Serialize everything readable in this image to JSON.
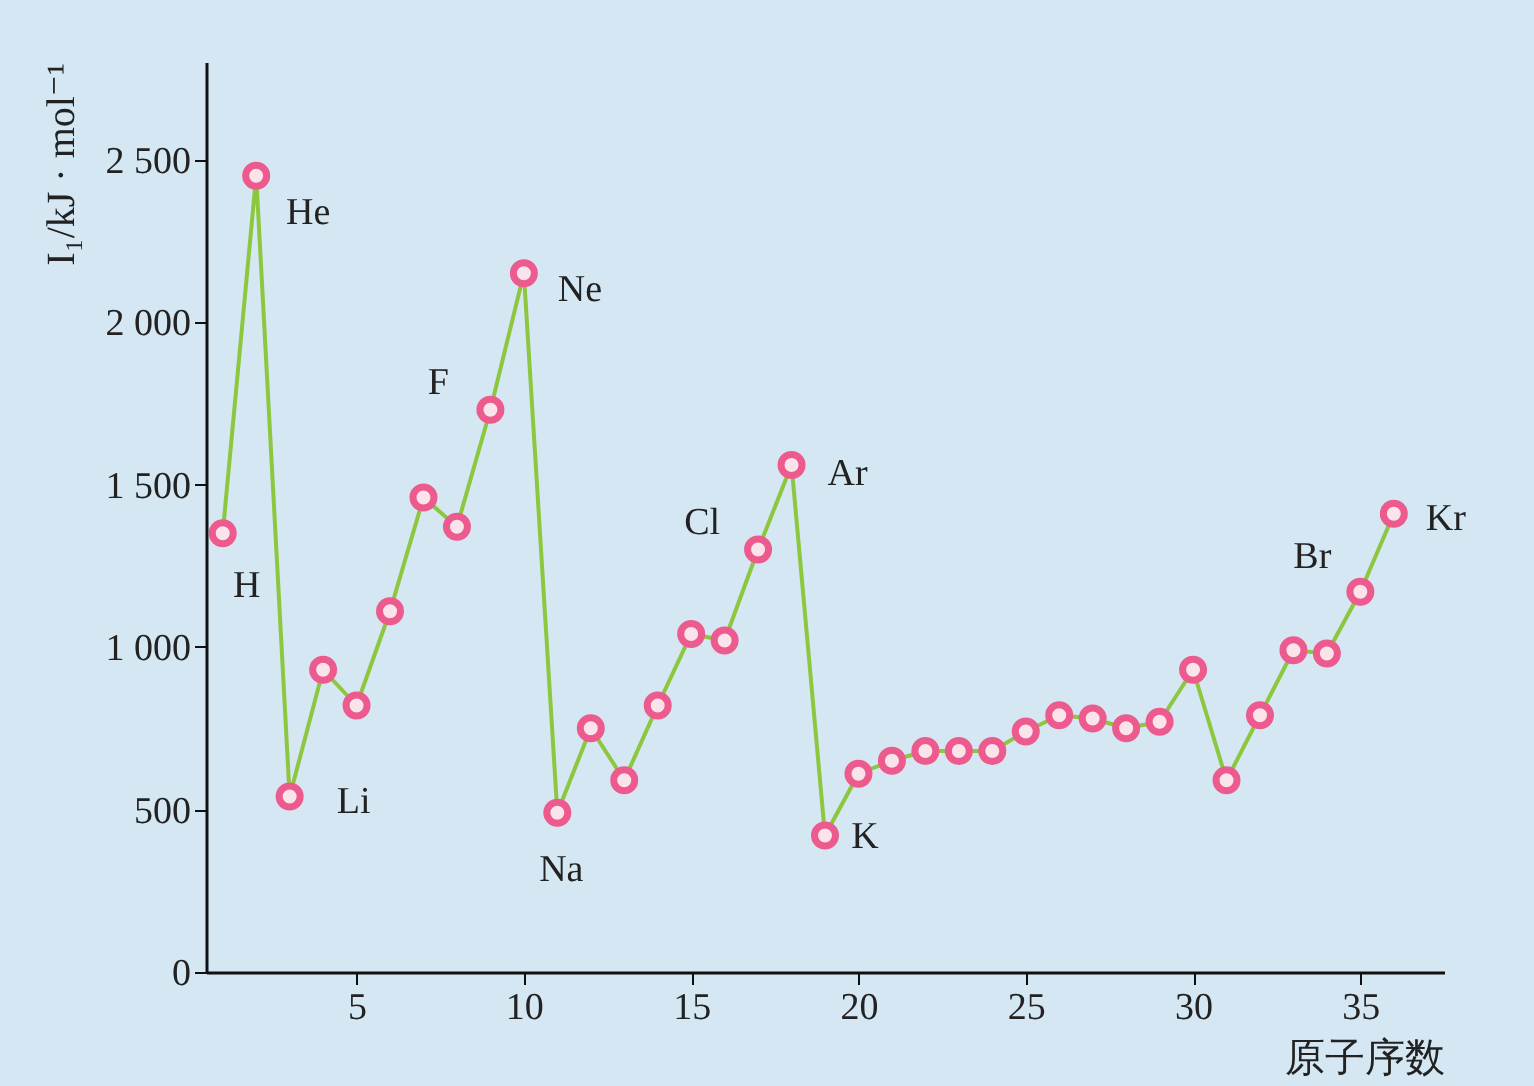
{
  "chart_data": {
    "type": "line",
    "xlabel": "原子序数",
    "ylabel": "I₁/kJ · mol⁻¹",
    "x": [
      1,
      2,
      3,
      4,
      5,
      6,
      7,
      8,
      9,
      10,
      11,
      12,
      13,
      14,
      15,
      16,
      17,
      18,
      19,
      20,
      21,
      22,
      23,
      24,
      25,
      26,
      27,
      28,
      29,
      30,
      31,
      32,
      33,
      34,
      35,
      36
    ],
    "series": [
      {
        "color": "#8dc63f",
        "colors": [
          "#ec5a8e",
          "#ec5a8e",
          "#ec5a8e",
          "#ec5a8e",
          "#ec5a8e",
          "#ec5a8e",
          "#ec5a8e",
          "#ec5a8e",
          "#ec5a8e",
          "#ec5a8e",
          "#ec5a8e",
          "#ec5a8e",
          "#ec5a8e",
          "#ec5a8e",
          "#ec5a8e",
          "#ec5a8e",
          "#ec5a8e",
          "#ec5a8e",
          "#ec5a8e",
          "#ec5a8e",
          "#ec5a8e",
          "#ec5a8e",
          "#ec5a8e",
          "#ec5a8e",
          "#ec5a8e",
          "#ec5a8e",
          "#ec5a8e",
          "#ec5a8e",
          "#ec5a8e",
          "#ec5a8e",
          "#ec5a8e",
          "#ec5a8e",
          "#ec5a8e",
          "#ec5a8e",
          "#ec5a8e",
          "#ec5a8e"
        ],
        "values": [
          1350,
          2450,
          540,
          930,
          820,
          1110,
          1460,
          1370,
          1730,
          2150,
          490,
          750,
          590,
          820,
          1040,
          1020,
          1300,
          1560,
          420,
          610,
          650,
          680,
          680,
          680,
          740,
          790,
          780,
          750,
          770,
          930,
          590,
          790,
          990,
          980,
          1170,
          1410
        ]
      }
    ],
    "xlim": [
      0.5,
      37.5
    ],
    "xticks": [
      5,
      10,
      15,
      20,
      25,
      30,
      35
    ],
    "ylim": [
      0,
      2800
    ],
    "yticks": [
      0,
      500,
      {
        "value": 1000,
        "label": "1 000"
      },
      {
        "value": 1500,
        "label": "1 500"
      },
      {
        "value": 2000,
        "label": "2 000"
      },
      {
        "value": 2500,
        "label": "2 500"
      }
    ],
    "grid": false,
    "marker": "circle",
    "line_style": "solid",
    "annotations": [
      {
        "text": "H",
        "x": 1,
        "y": 1350
      },
      {
        "text": "He",
        "x": 2,
        "y": 2450
      },
      {
        "text": "Li",
        "x": 3,
        "y": 540
      },
      {
        "text": "F",
        "x": 9,
        "y": 1730
      },
      {
        "text": "Ne",
        "x": 10,
        "y": 2150
      },
      {
        "text": "Na",
        "x": 11,
        "y": 490
      },
      {
        "text": "Cl",
        "x": 17,
        "y": 1300
      },
      {
        "text": "Ar",
        "x": 18,
        "y": 1560
      },
      {
        "text": "K",
        "x": 19,
        "y": 420
      },
      {
        "text": "Br",
        "x": 35,
        "y": 1170
      },
      {
        "text": "Kr",
        "x": 36,
        "y": 1410
      }
    ]
  }
}
